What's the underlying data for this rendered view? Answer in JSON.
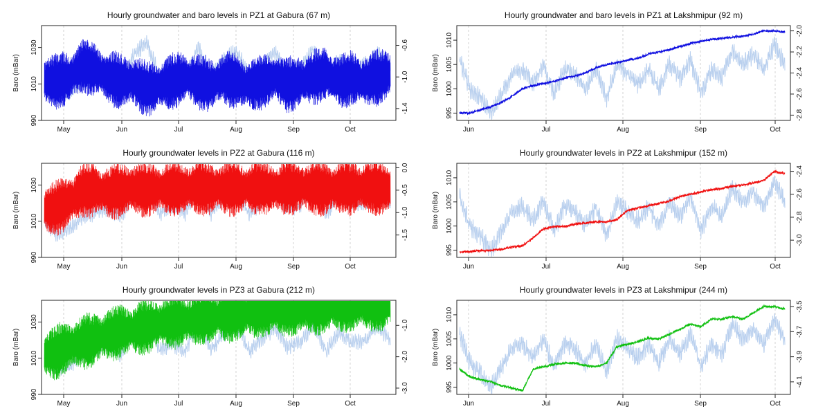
{
  "chart_data": [
    {
      "type": "line",
      "title": "Hourly groundwater and baro levels in PZ1 at Gabura (67 m)",
      "ylabel": "Baro (mBar)",
      "color": "#1010e0",
      "baro_color": "#b8cfee",
      "x_ticks": [
        "May",
        "Jun",
        "Jul",
        "Aug",
        "Sep",
        "Oct"
      ],
      "y_left_ticks": [
        "990",
        "1010",
        "1030"
      ],
      "y_right_ticks": [
        "-1.4",
        "-1.0",
        "-0.6"
      ],
      "ylim_left": [
        990,
        1042
      ],
      "ylim_right": [
        -1.55,
        -0.35
      ],
      "series": [
        {
          "values": [
            1010,
            1003,
            1006,
            1012,
            1015,
            1017,
            1012,
            1026,
            1033,
            1014,
            1018,
            1014,
            1030,
            1014,
            1023,
            1028,
            1014,
            1021,
            1027,
            1016,
            1019,
            1029,
            1014,
            1024,
            1019,
            1020,
            1027,
            1020
          ]
        },
        {
          "values": [
            -1.2,
            -1.2,
            -1.15,
            -1.0,
            -1.05,
            -1.15,
            -1.2,
            -1.2,
            -1.3,
            -1.25,
            -1.2,
            -1.15,
            -1.2,
            -1.25,
            -1.15,
            -1.2,
            -1.25,
            -1.2,
            -1.15,
            -1.25,
            -1.2,
            -1.15,
            -1.1,
            -1.2,
            -1.15,
            -1.2,
            -1.15,
            -1.1
          ]
        }
      ]
    },
    {
      "type": "line",
      "title": "Hourly groundwater and baro levels in PZ1 at Lakshmipur (92 m)",
      "ylabel": "Baro (mBar)",
      "color": "#1010e0",
      "baro_color": "#b8cfee",
      "x_ticks": [
        "Jun",
        "Jul",
        "Aug",
        "Sep",
        "Oct"
      ],
      "y_left_ticks": [
        "995",
        "1000",
        "1005",
        "1010"
      ],
      "y_right_ticks": [
        "-2.8",
        "-2.6",
        "-2.4",
        "-2.2",
        "-2.0"
      ],
      "ylim_left": [
        993.5,
        1013
      ],
      "ylim_right": [
        -2.85,
        -1.95
      ],
      "series": [
        {
          "values": [
            1006,
            1000,
            998,
            995,
            999,
            1003,
            1004,
            1001,
            1005,
            999,
            1004,
            1003,
            1000,
            1004,
            998,
            1005,
            1003,
            1001,
            1004,
            1000,
            1005,
            1002,
            1006,
            999,
            1004,
            1002,
            1008,
            1005,
            1007,
            1004,
            1009,
            1005
          ]
        },
        {
          "values": [
            -2.78,
            -2.78,
            -2.75,
            -2.72,
            -2.68,
            -2.62,
            -2.55,
            -2.52,
            -2.5,
            -2.48,
            -2.45,
            -2.43,
            -2.4,
            -2.35,
            -2.32,
            -2.3,
            -2.28,
            -2.26,
            -2.22,
            -2.2,
            -2.18,
            -2.15,
            -2.12,
            -2.1,
            -2.08,
            -2.07,
            -2.06,
            -2.05,
            -2.03,
            -2.0,
            -2.0,
            -2.01
          ]
        }
      ]
    },
    {
      "type": "line",
      "title": "Hourly groundwater levels in PZ2 at Gabura (116 m)",
      "ylabel": "Baro (mBar)",
      "color": "#f01010",
      "baro_color": "#b8cfee",
      "x_ticks": [
        "May",
        "Jun",
        "Jul",
        "Aug",
        "Sep",
        "Oct"
      ],
      "y_left_ticks": [
        "990",
        "1010",
        "1030"
      ],
      "y_right_ticks": [
        "-1.5",
        "-1.0",
        "-0.5",
        "0.0"
      ],
      "ylim_left": [
        990,
        1042
      ],
      "ylim_right": [
        -2.0,
        0.1
      ],
      "series": [
        {
          "values": [
            1010,
            1003,
            1006,
            1012,
            1015,
            1017,
            1012,
            1026,
            1033,
            1014,
            1018,
            1014,
            1030,
            1014,
            1023,
            1028,
            1014,
            1021,
            1027,
            1016,
            1019,
            1029,
            1014,
            1024,
            1019,
            1020,
            1027,
            1020
          ]
        },
        {
          "values": [
            -1.2,
            -1.15,
            -1.0,
            -0.75,
            -0.75,
            -0.8,
            -0.75,
            -0.72,
            -0.75,
            -0.72,
            -0.7,
            -0.72,
            -0.68,
            -0.72,
            -0.7,
            -0.72,
            -0.7,
            -0.7,
            -0.72,
            -0.7,
            -0.68,
            -0.7,
            -0.72,
            -0.7,
            -0.72,
            -0.68,
            -0.7,
            -0.72
          ]
        }
      ]
    },
    {
      "type": "line",
      "title": "Hourly groundwater levels in PZ2 at Lakshmipur (152 m)",
      "ylabel": "Baro (mBar)",
      "color": "#f01010",
      "baro_color": "#b8cfee",
      "x_ticks": [
        "Jun",
        "Jul",
        "Aug",
        "Sep",
        "Oct"
      ],
      "y_left_ticks": [
        "995",
        "1000",
        "1005",
        "1010"
      ],
      "y_right_ticks": [
        "-3.0",
        "-2.8",
        "-2.6",
        "-2.4"
      ],
      "ylim_left": [
        993.5,
        1013
      ],
      "ylim_right": [
        -3.15,
        -2.33
      ],
      "series": [
        {
          "values": [
            1006,
            1000,
            998,
            995,
            999,
            1003,
            1004,
            1001,
            1005,
            999,
            1004,
            1003,
            1000,
            1004,
            998,
            1005,
            1003,
            1001,
            1004,
            1000,
            1005,
            1002,
            1006,
            999,
            1004,
            1002,
            1008,
            1005,
            1007,
            1004,
            1009,
            1005
          ]
        },
        {
          "values": [
            -3.1,
            -3.1,
            -3.09,
            -3.09,
            -3.08,
            -3.06,
            -3.05,
            -2.98,
            -2.9,
            -2.88,
            -2.88,
            -2.86,
            -2.85,
            -2.84,
            -2.84,
            -2.82,
            -2.74,
            -2.72,
            -2.7,
            -2.68,
            -2.66,
            -2.62,
            -2.6,
            -2.58,
            -2.56,
            -2.55,
            -2.53,
            -2.52,
            -2.5,
            -2.48,
            -2.4,
            -2.42
          ]
        }
      ]
    },
    {
      "type": "line",
      "title": "Hourly groundwater levels in PZ3 at Gabura (212 m)",
      "ylabel": "Baro (mBar)",
      "color": "#10c010",
      "baro_color": "#b8cfee",
      "x_ticks": [
        "May",
        "Jun",
        "Jul",
        "Aug",
        "Sep",
        "Oct"
      ],
      "y_left_ticks": [
        "990",
        "1010",
        "1030"
      ],
      "y_right_ticks": [
        "-3.0",
        "-2.0",
        "-1.0"
      ],
      "ylim_left": [
        990,
        1042
      ],
      "ylim_right": [
        -3.2,
        -0.2
      ],
      "series": [
        {
          "values": [
            1010,
            1003,
            1006,
            1012,
            1015,
            1017,
            1012,
            1026,
            1033,
            1014,
            1018,
            1014,
            1030,
            1014,
            1023,
            1028,
            1014,
            1021,
            1027,
            1016,
            1019,
            1029,
            1014,
            1024,
            1019,
            1020,
            1027,
            1020
          ]
        },
        {
          "values": [
            -2.3,
            -2.2,
            -2.0,
            -1.9,
            -1.8,
            -1.65,
            -1.55,
            -1.5,
            -1.4,
            -1.3,
            -1.25,
            -1.2,
            -1.15,
            -1.1,
            -1.05,
            -1.0,
            -0.95,
            -0.9,
            -0.88,
            -0.85,
            -0.82,
            -0.8,
            -0.78,
            -0.75,
            -0.72,
            -0.7,
            -0.68,
            -0.7
          ]
        }
      ]
    },
    {
      "type": "line",
      "title": "Hourly groundwater levels in PZ3 at Lakshmipur (244 m)",
      "ylabel": "Baro (mBar)",
      "color": "#10c010",
      "baro_color": "#b8cfee",
      "x_ticks": [
        "Jun",
        "Jul",
        "Aug",
        "Sep",
        "Oct"
      ],
      "y_left_ticks": [
        "995",
        "1000",
        "1005",
        "1010"
      ],
      "y_right_ticks": [
        "-4.1",
        "-3.9",
        "-3.7",
        "-3.5"
      ],
      "ylim_left": [
        993.5,
        1013
      ],
      "ylim_right": [
        -4.2,
        -3.45
      ],
      "series": [
        {
          "values": [
            1006,
            1000,
            998,
            995,
            999,
            1003,
            1004,
            1001,
            1005,
            999,
            1004,
            1003,
            1000,
            1004,
            998,
            1005,
            1003,
            1001,
            1004,
            1000,
            1005,
            1002,
            1006,
            999,
            1004,
            1002,
            1008,
            1005,
            1007,
            1004,
            1009,
            1005
          ]
        },
        {
          "values": [
            -4.0,
            -4.06,
            -4.08,
            -4.1,
            -4.13,
            -4.15,
            -4.17,
            -4.0,
            -3.98,
            -3.96,
            -3.95,
            -3.95,
            -3.97,
            -3.98,
            -3.95,
            -3.82,
            -3.8,
            -3.78,
            -3.75,
            -3.76,
            -3.72,
            -3.68,
            -3.64,
            -3.66,
            -3.6,
            -3.6,
            -3.58,
            -3.6,
            -3.55,
            -3.5,
            -3.5,
            -3.52
          ]
        }
      ]
    }
  ]
}
